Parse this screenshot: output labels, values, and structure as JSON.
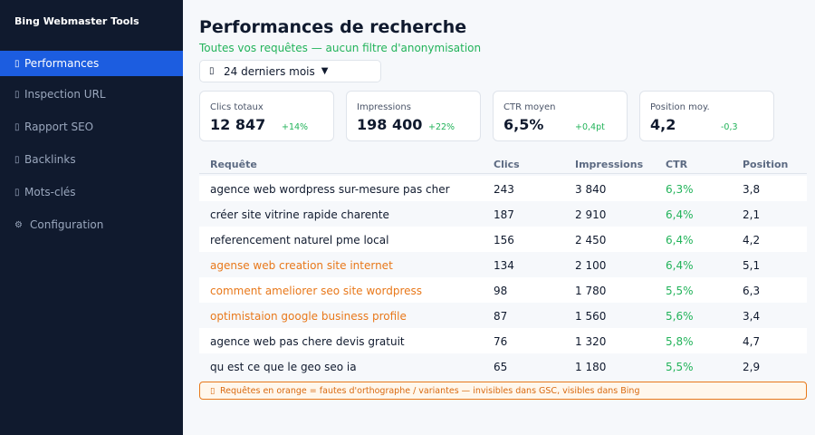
{
  "app": {
    "name": "Bing Webmaster Tools"
  },
  "sidebar": {
    "items": [
      {
        "icon": "box-glyph-icon",
        "label": "Performances",
        "active": true
      },
      {
        "icon": "box-glyph-icon",
        "label": "Inspection URL"
      },
      {
        "icon": "box-glyph-icon",
        "label": "Rapport SEO"
      },
      {
        "icon": "box-glyph-icon",
        "label": "Backlinks"
      },
      {
        "icon": "box-glyph-icon",
        "label": "Mots-clés"
      },
      {
        "icon": "gear-icon",
        "glyph": "⚙",
        "label": "Configuration"
      }
    ]
  },
  "header": {
    "title": "Performances de recherche",
    "subtitle": "Toutes vos requêtes — aucun filtre d'anonymisation"
  },
  "period": {
    "label": "24 derniers mois",
    "caret": "▼"
  },
  "kpis": [
    {
      "label": "Clics totaux",
      "value": "12 847",
      "delta": "+14%"
    },
    {
      "label": "Impressions",
      "value": "198 400",
      "delta": "+22%"
    },
    {
      "label": "CTR moyen",
      "value": "6,5%",
      "delta": "+0,4pt"
    },
    {
      "label": "Position moy.",
      "value": "4,2",
      "delta": "-0,3"
    }
  ],
  "table": {
    "headers": [
      "Requête",
      "Clics",
      "Impressions",
      "CTR",
      "Position"
    ],
    "rows": [
      {
        "query": "agence web wordpress sur-mesure pas cher",
        "clicks": "243",
        "impressions": "3 840",
        "ctr": "6,3%",
        "position": "3,8",
        "misspelling": false
      },
      {
        "query": "créer site vitrine rapide charente",
        "clicks": "187",
        "impressions": "2 910",
        "ctr": "6,4%",
        "position": "2,1",
        "misspelling": false
      },
      {
        "query": "referencement naturel pme local",
        "clicks": "156",
        "impressions": "2 450",
        "ctr": "6,4%",
        "position": "4,2",
        "misspelling": false
      },
      {
        "query": "agense web creation site internet",
        "clicks": "134",
        "impressions": "2 100",
        "ctr": "6,4%",
        "position": "5,1",
        "misspelling": true
      },
      {
        "query": "comment ameliorer seo site wordpress",
        "clicks": "98",
        "impressions": "1 780",
        "ctr": "5,5%",
        "position": "6,3",
        "misspelling": true
      },
      {
        "query": "optimistaion google business profile",
        "clicks": "87",
        "impressions": "1 560",
        "ctr": "5,6%",
        "position": "3,4",
        "misspelling": true
      },
      {
        "query": "agence web pas chere devis gratuit",
        "clicks": "76",
        "impressions": "1 320",
        "ctr": "5,8%",
        "position": "4,7",
        "misspelling": false
      },
      {
        "query": "qu est ce que le geo seo ia",
        "clicks": "65",
        "impressions": "1 180",
        "ctr": "5,5%",
        "position": "2,9",
        "misspelling": false
      }
    ]
  },
  "note": {
    "icon": "box-glyph-icon",
    "text": "Requêtes en orange = fautes d'orthographe / variantes — invisibles dans GSC, visibles dans Bing"
  },
  "colors": {
    "sidebar_bg": "#101a2e",
    "active_bg": "#1c5de0",
    "positive": "#22b35a",
    "warning": "#e8781a"
  }
}
